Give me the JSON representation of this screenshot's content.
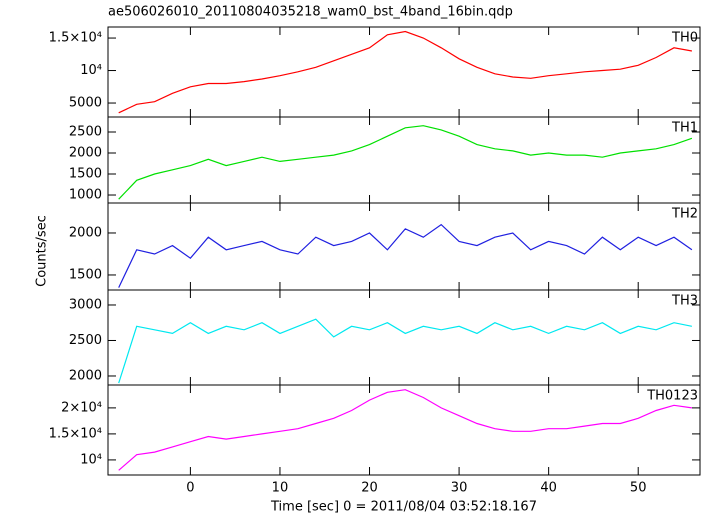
{
  "chart_data": [
    {
      "type": "line",
      "title": "ae506026010_20110804035218_wam0_bst_4band_16bin.qdp",
      "x": [
        -8,
        -6,
        -4,
        -2,
        0,
        2,
        4,
        6,
        8,
        10,
        12,
        14,
        16,
        18,
        20,
        22,
        24,
        26,
        28,
        30,
        32,
        34,
        36,
        38,
        40,
        42,
        44,
        46,
        48,
        50,
        52,
        54,
        56
      ],
      "series": [
        {
          "name": "TH0",
          "color": "#ff0000",
          "values": [
            3500,
            4800,
            5200,
            6500,
            7500,
            8000,
            8000,
            8300,
            8700,
            9200,
            9800,
            10500,
            11500,
            12500,
            13500,
            15500,
            16000,
            15000,
            13500,
            11800,
            10500,
            9500,
            9000,
            8800,
            9200,
            9500,
            9800,
            10000,
            10200,
            10800,
            12000,
            13500,
            13000
          ]
        }
      ],
      "xlim": [
        -9.2,
        56.9
      ],
      "xticks": [
        0,
        10,
        20,
        30,
        40,
        50
      ],
      "ylim": [
        2850,
        16700
      ],
      "yticks": [
        5000,
        {
          "value": 10000,
          "label": "10⁴"
        },
        {
          "value": 15000,
          "label": "1.5×10⁴"
        }
      ]
    },
    {
      "type": "line",
      "x": [
        -8,
        -6,
        -4,
        -2,
        0,
        2,
        4,
        6,
        8,
        10,
        12,
        14,
        16,
        18,
        20,
        22,
        24,
        26,
        28,
        30,
        32,
        34,
        36,
        38,
        40,
        42,
        44,
        46,
        48,
        50,
        52,
        54,
        56
      ],
      "series": [
        {
          "name": "TH1",
          "color": "#00e000",
          "values": [
            900,
            1350,
            1500,
            1600,
            1700,
            1850,
            1700,
            1800,
            1900,
            1800,
            1850,
            1900,
            1950,
            2050,
            2200,
            2400,
            2600,
            2650,
            2550,
            2400,
            2200,
            2100,
            2050,
            1950,
            2000,
            1950,
            1950,
            1900,
            2000,
            2050,
            2100,
            2200,
            2350
          ]
        }
      ],
      "xlim": [
        -9.2,
        56.9
      ],
      "xticks": [
        0,
        10,
        20,
        30,
        40,
        50
      ],
      "ylim": [
        810,
        2857
      ],
      "yticks": [
        1000,
        1500,
        2000,
        2500
      ]
    },
    {
      "type": "line",
      "ylabel": "Counts/sec",
      "x": [
        -8,
        -6,
        -4,
        -2,
        0,
        2,
        4,
        6,
        8,
        10,
        12,
        14,
        16,
        18,
        20,
        22,
        24,
        26,
        28,
        30,
        32,
        34,
        36,
        38,
        40,
        42,
        44,
        46,
        48,
        50,
        52,
        54,
        56
      ],
      "series": [
        {
          "name": "TH2",
          "color": "#2020e0",
          "values": [
            1350,
            1800,
            1750,
            1850,
            1700,
            1950,
            1800,
            1850,
            1900,
            1800,
            1750,
            1950,
            1850,
            1900,
            2000,
            1800,
            2050,
            1950,
            2100,
            1900,
            1850,
            1950,
            2000,
            1800,
            1900,
            1850,
            1750,
            1950,
            1800,
            1950,
            1850,
            1950,
            1800
          ]
        }
      ],
      "xlim": [
        -9.2,
        56.9
      ],
      "xticks": [
        0,
        10,
        20,
        30,
        40,
        50
      ],
      "ylim": [
        1321,
        2357
      ],
      "yticks": [
        1500,
        2000
      ]
    },
    {
      "type": "line",
      "x": [
        -8,
        -6,
        -4,
        -2,
        0,
        2,
        4,
        6,
        8,
        10,
        12,
        14,
        16,
        18,
        20,
        22,
        24,
        26,
        28,
        30,
        32,
        34,
        36,
        38,
        40,
        42,
        44,
        46,
        48,
        50,
        52,
        54,
        56
      ],
      "series": [
        {
          "name": "TH3",
          "color": "#00e8f0",
          "values": [
            1900,
            2700,
            2650,
            2600,
            2750,
            2600,
            2700,
            2650,
            2750,
            2600,
            2700,
            2800,
            2550,
            2700,
            2650,
            2750,
            2600,
            2700,
            2650,
            2700,
            2600,
            2750,
            2650,
            2700,
            2600,
            2700,
            2650,
            2750,
            2600,
            2700,
            2650,
            2750,
            2700
          ]
        }
      ],
      "xlim": [
        -9.2,
        56.9
      ],
      "xticks": [
        0,
        10,
        20,
        30,
        40,
        50
      ],
      "ylim": [
        1873,
        3211
      ],
      "yticks": [
        2000,
        2500,
        3000
      ]
    },
    {
      "type": "line",
      "xlabel": "Time [sec] 0 = 2011/08/04 03:52:18.167",
      "x": [
        -8,
        -6,
        -4,
        -2,
        0,
        2,
        4,
        6,
        8,
        10,
        12,
        14,
        16,
        18,
        20,
        22,
        24,
        26,
        28,
        30,
        32,
        34,
        36,
        38,
        40,
        42,
        44,
        46,
        48,
        50,
        52,
        54,
        56
      ],
      "series": [
        {
          "name": "TH0123",
          "color": "#ff00ff",
          "values": [
            8000,
            11000,
            11500,
            12500,
            13500,
            14500,
            14000,
            14500,
            15000,
            15500,
            16000,
            17000,
            18000,
            19500,
            21500,
            23000,
            23500,
            22000,
            20000,
            18500,
            17000,
            16000,
            15500,
            15500,
            16000,
            16000,
            16500,
            17000,
            17000,
            18000,
            19500,
            20500,
            20000
          ]
        }
      ],
      "xlim": [
        -9.2,
        56.9
      ],
      "xticks": [
        0,
        10,
        20,
        30,
        40,
        50
      ],
      "ylim": [
        7100,
        24400
      ],
      "yticks": [
        {
          "value": 10000,
          "label": "10⁴"
        },
        {
          "value": 15000,
          "label": "1.5×10⁴"
        },
        {
          "value": 20000,
          "label": "2×10⁴"
        }
      ]
    }
  ]
}
